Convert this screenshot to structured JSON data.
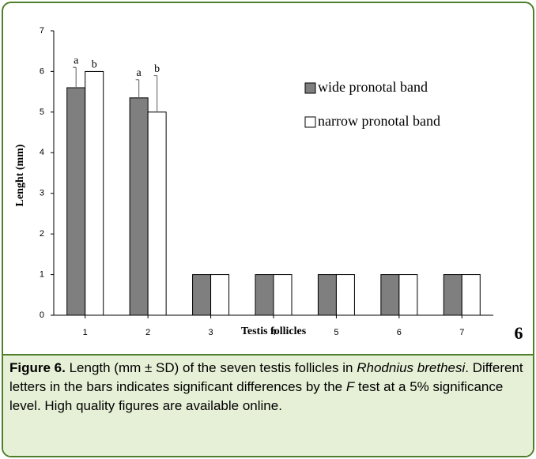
{
  "chart_data": {
    "type": "bar",
    "y_label": "Lenght (mm)",
    "x_label": "Testis follicles",
    "panel": "6",
    "categories": [
      "1",
      "2",
      "3",
      "4",
      "5",
      "6",
      "7"
    ],
    "series": [
      {
        "name": "wide pronotal band",
        "color": "#7f7f7f",
        "values": [
          5.6,
          5.35,
          1,
          1,
          1,
          1,
          1
        ],
        "errors": [
          0.5,
          0.45,
          null,
          null,
          null,
          null,
          null
        ],
        "letters": [
          "a",
          "a",
          null,
          null,
          null,
          null,
          null
        ]
      },
      {
        "name": "narrow pronotal band",
        "color": "#ffffff",
        "values": [
          6,
          5,
          1,
          1,
          1,
          1,
          1
        ],
        "errors": [
          null,
          0.9,
          null,
          null,
          null,
          null,
          null
        ],
        "letters": [
          "b",
          "b",
          null,
          null,
          null,
          null,
          null
        ]
      }
    ],
    "ylim": [
      0,
      7
    ],
    "yticks": [
      0,
      1,
      2,
      3,
      4,
      5,
      6,
      7
    ],
    "legend": "upper right"
  },
  "caption": [
    {
      "text": "Figure 6.",
      "style": "bold"
    },
    {
      "text": " Length (mm ± SD) of the seven testis follicles in ",
      "style": "normal"
    },
    {
      "text": "Rhodnius brethesi",
      "style": "italic"
    },
    {
      "text": ". Different letters in the bars indicates significant differences by the ",
      "style": "normal"
    },
    {
      "text": "F",
      "style": "italic"
    },
    {
      "text": " test at a 5% significance level. High quality figures are available online.",
      "style": "normal"
    }
  ]
}
